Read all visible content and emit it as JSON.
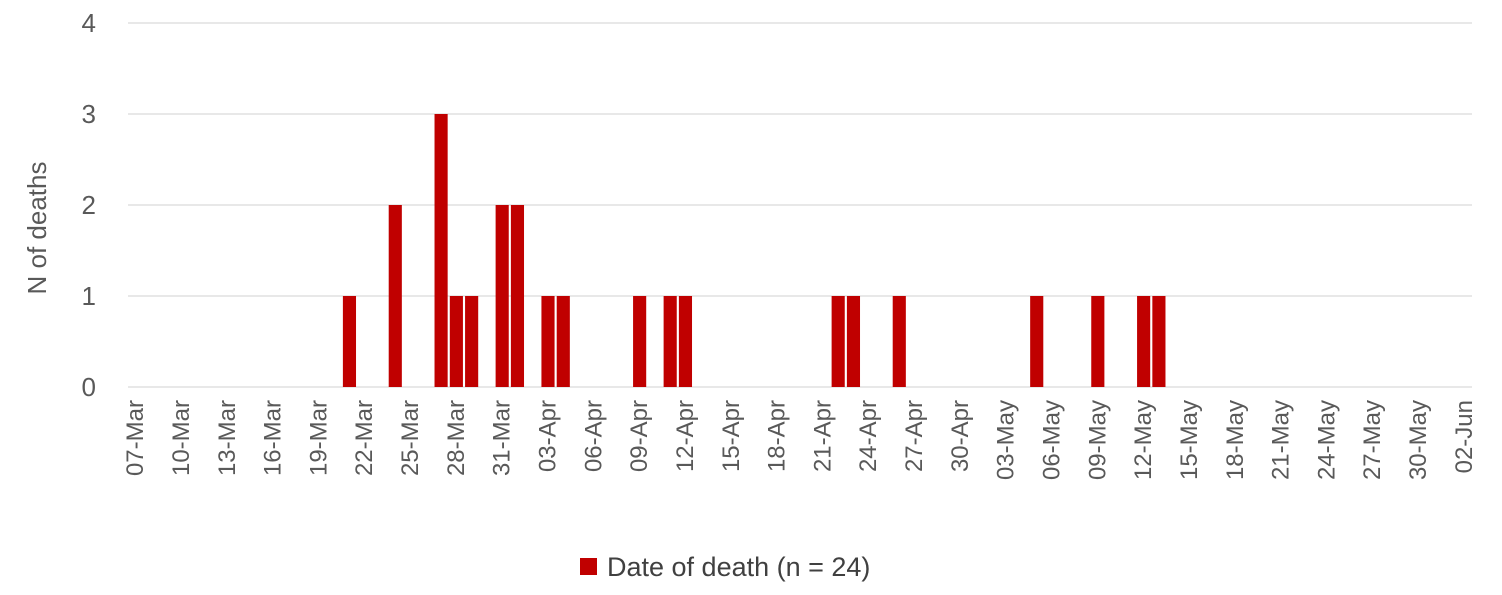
{
  "chart_data": {
    "type": "bar",
    "title": "",
    "xlabel": "",
    "ylabel": "N of deaths",
    "ylim": [
      0,
      4
    ],
    "yticks": [
      0,
      1,
      2,
      3,
      4
    ],
    "xrange": [
      "07-Mar",
      "02-Jun"
    ],
    "xtick_labels": [
      "07-Mar",
      "10-Mar",
      "13-Mar",
      "16-Mar",
      "19-Mar",
      "22-Mar",
      "25-Mar",
      "28-Mar",
      "31-Mar",
      "03-Apr",
      "06-Apr",
      "09-Apr",
      "12-Apr",
      "15-Apr",
      "18-Apr",
      "21-Apr",
      "24-Apr",
      "27-Apr",
      "30-Apr",
      "03-May",
      "06-May",
      "09-May",
      "12-May",
      "15-May",
      "18-May",
      "21-May",
      "24-May",
      "27-May",
      "30-May",
      "02-Jun"
    ],
    "grid": true,
    "legend_position": "bottom-center",
    "series": [
      {
        "name": "Date of death (n = 24)",
        "color": "#C00000",
        "points": [
          {
            "x": "21-Mar",
            "y": 1
          },
          {
            "x": "24-Mar",
            "y": 2
          },
          {
            "x": "27-Mar",
            "y": 3
          },
          {
            "x": "28-Mar",
            "y": 1
          },
          {
            "x": "29-Mar",
            "y": 1
          },
          {
            "x": "31-Mar",
            "y": 2
          },
          {
            "x": "01-Apr",
            "y": 2
          },
          {
            "x": "03-Apr",
            "y": 1
          },
          {
            "x": "04-Apr",
            "y": 1
          },
          {
            "x": "09-Apr",
            "y": 1
          },
          {
            "x": "11-Apr",
            "y": 1
          },
          {
            "x": "12-Apr",
            "y": 1
          },
          {
            "x": "22-Apr",
            "y": 1
          },
          {
            "x": "23-Apr",
            "y": 1
          },
          {
            "x": "26-Apr",
            "y": 1
          },
          {
            "x": "05-May",
            "y": 1
          },
          {
            "x": "09-May",
            "y": 1
          },
          {
            "x": "12-May",
            "y": 1
          },
          {
            "x": "13-May",
            "y": 1
          }
        ]
      }
    ]
  }
}
